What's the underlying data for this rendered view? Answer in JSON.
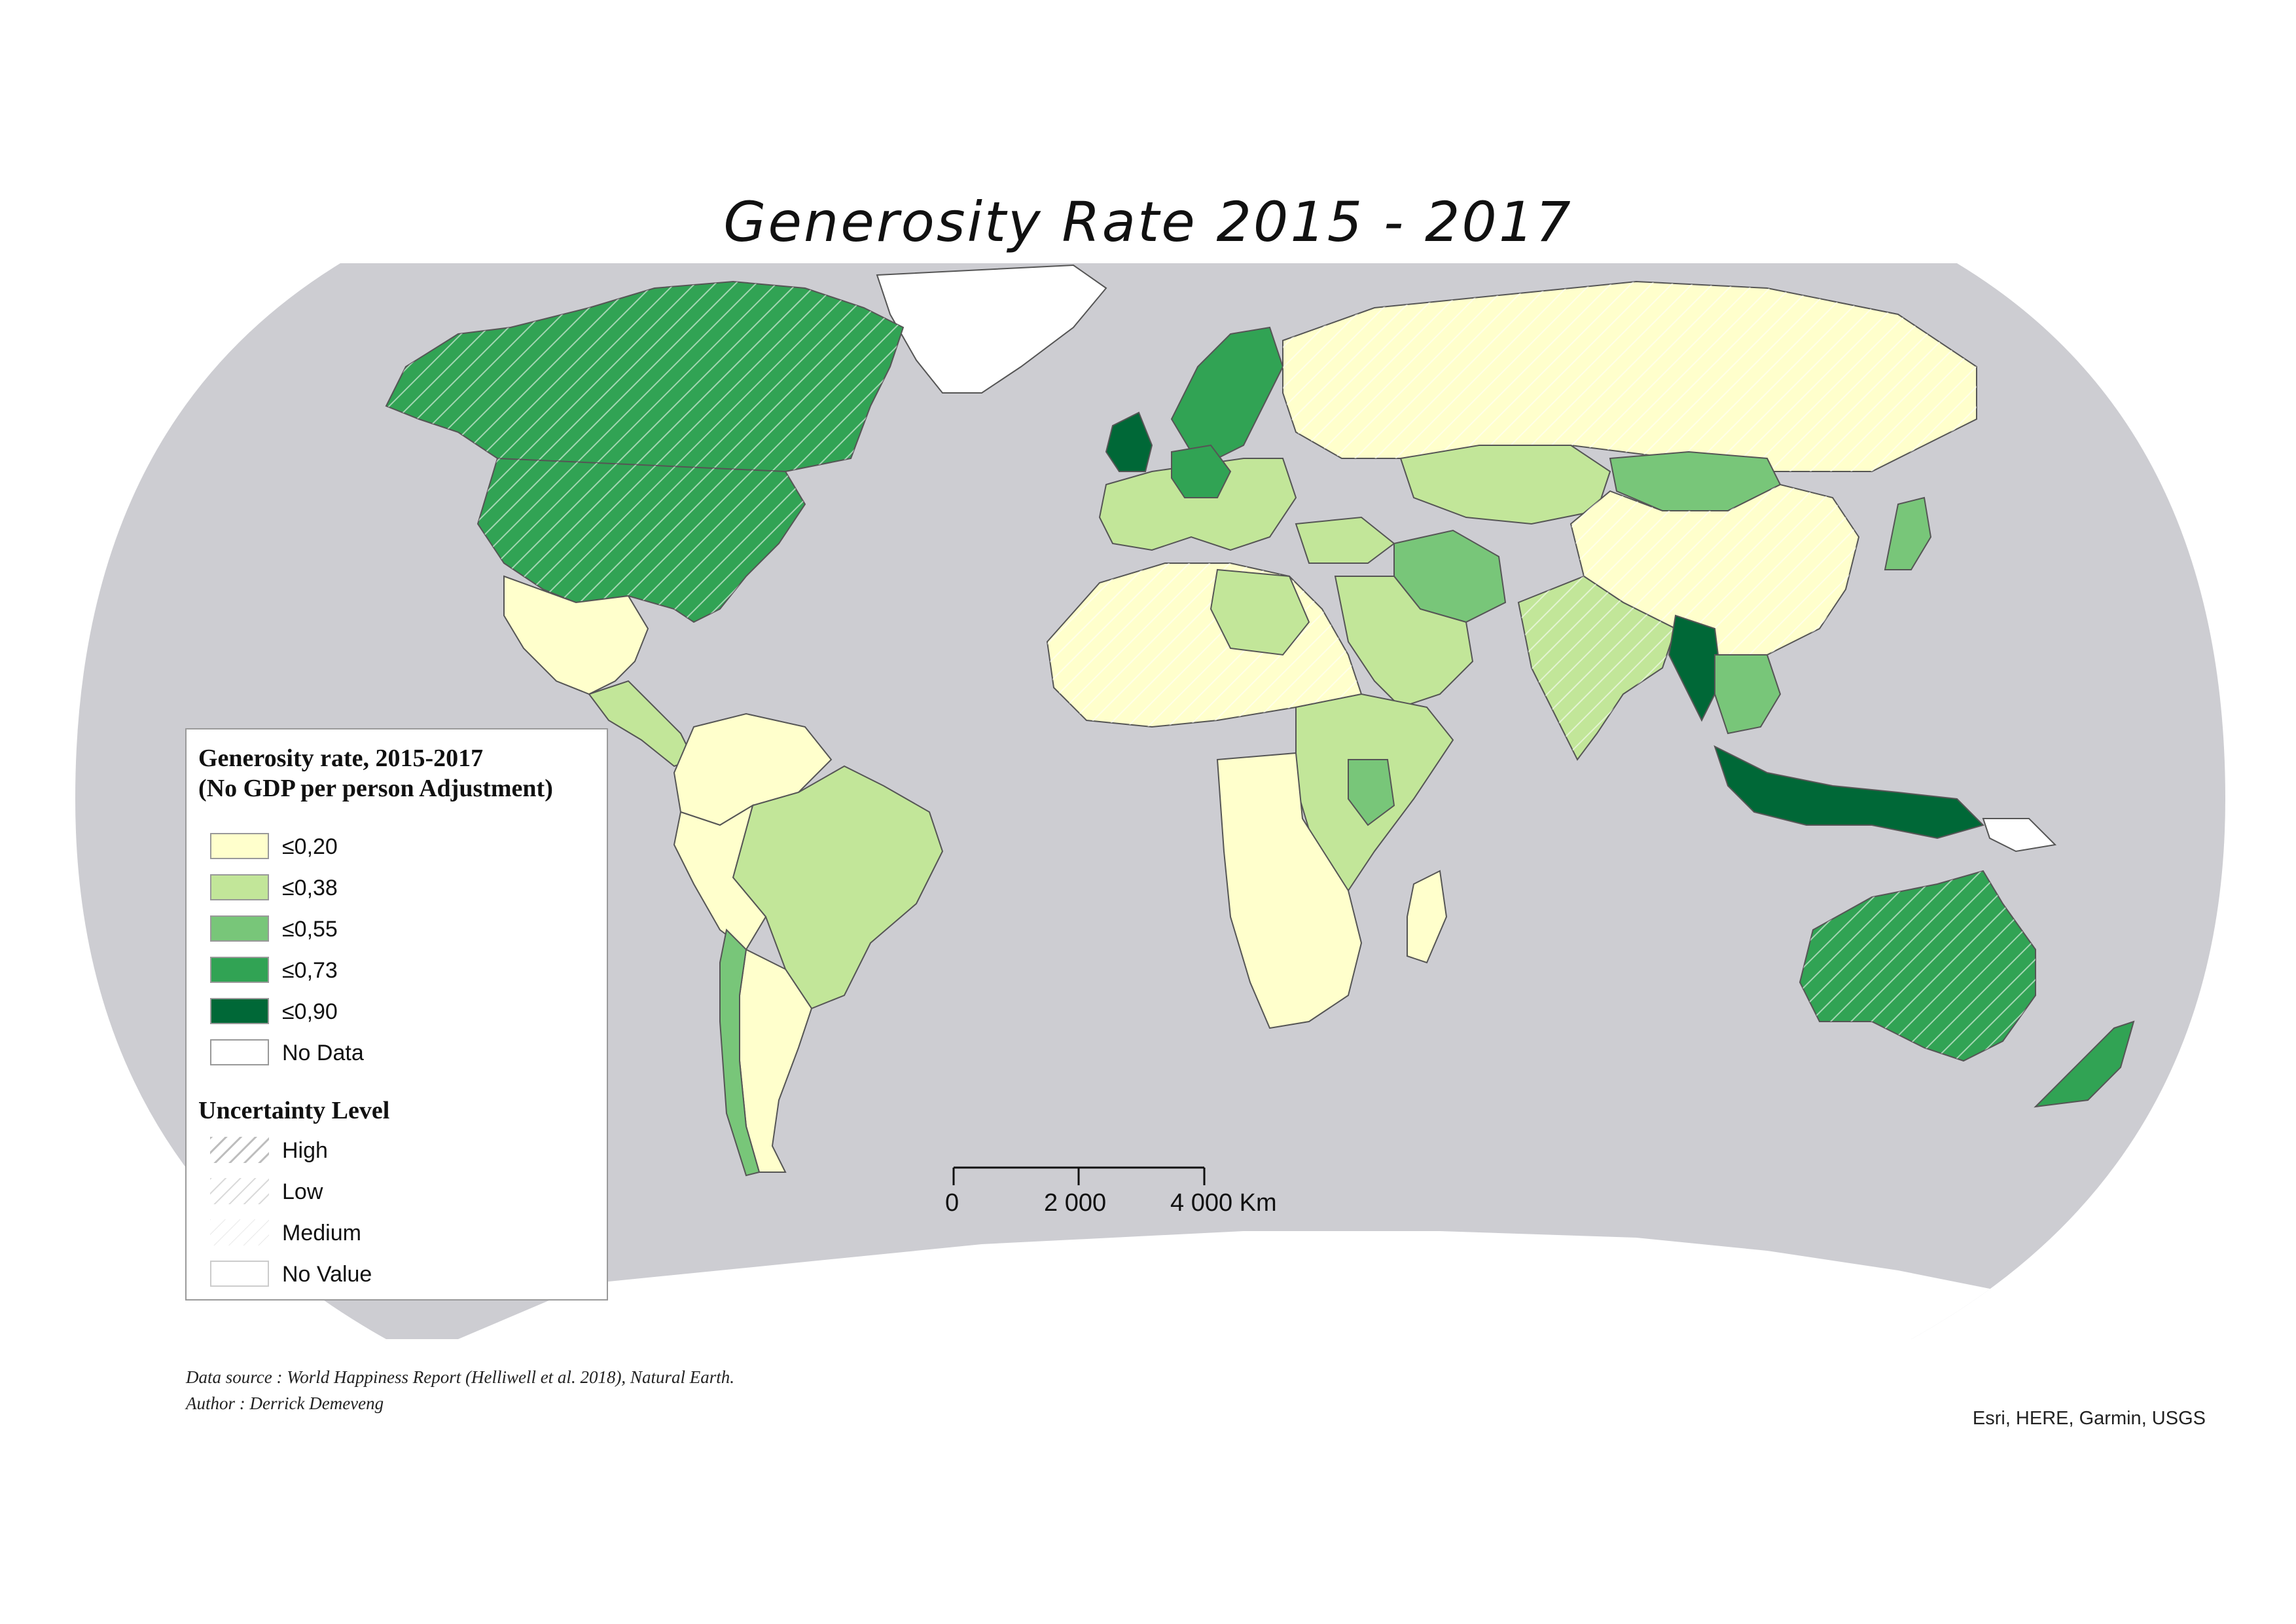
{
  "map": {
    "title": "Generosity Rate 2015 - 2017",
    "colors": {
      "ocean": "#cdcdd2",
      "no_data": "#ffffff",
      "class_1": "#ffffcc",
      "class_2": "#c2e699",
      "class_3": "#78c679",
      "class_4": "#31a354",
      "class_5": "#006837",
      "border": "#555555"
    }
  },
  "legend": {
    "title_line1": "Generosity rate, 2015-2017",
    "title_line2": "(No GDP per person Adjustment)",
    "classes": [
      {
        "label": "≤0,20",
        "color": "#ffffcc"
      },
      {
        "label": "≤0,38",
        "color": "#c2e699"
      },
      {
        "label": "≤0,55",
        "color": "#78c679"
      },
      {
        "label": "≤0,73",
        "color": "#31a354"
      },
      {
        "label": "≤0,90",
        "color": "#006837"
      },
      {
        "label": "No Data",
        "color": "#ffffff"
      }
    ],
    "uncertainty_title": "Uncertainty Level",
    "uncertainty": [
      {
        "label": "High",
        "pattern": "hatch-dense"
      },
      {
        "label": "Low",
        "pattern": "hatch-medium"
      },
      {
        "label": "Medium",
        "pattern": "hatch-light"
      },
      {
        "label": "No Value",
        "pattern": "none"
      }
    ]
  },
  "scalebar": {
    "labels": [
      "0",
      "2 000",
      "4 000 Km"
    ]
  },
  "footer": {
    "source": "Data source : World Happiness Report (Helliwell et al. 2018), Natural Earth.",
    "author": "Author : Derrick Demeveng",
    "attribution": "Esri, HERE, Garmin, USGS"
  }
}
